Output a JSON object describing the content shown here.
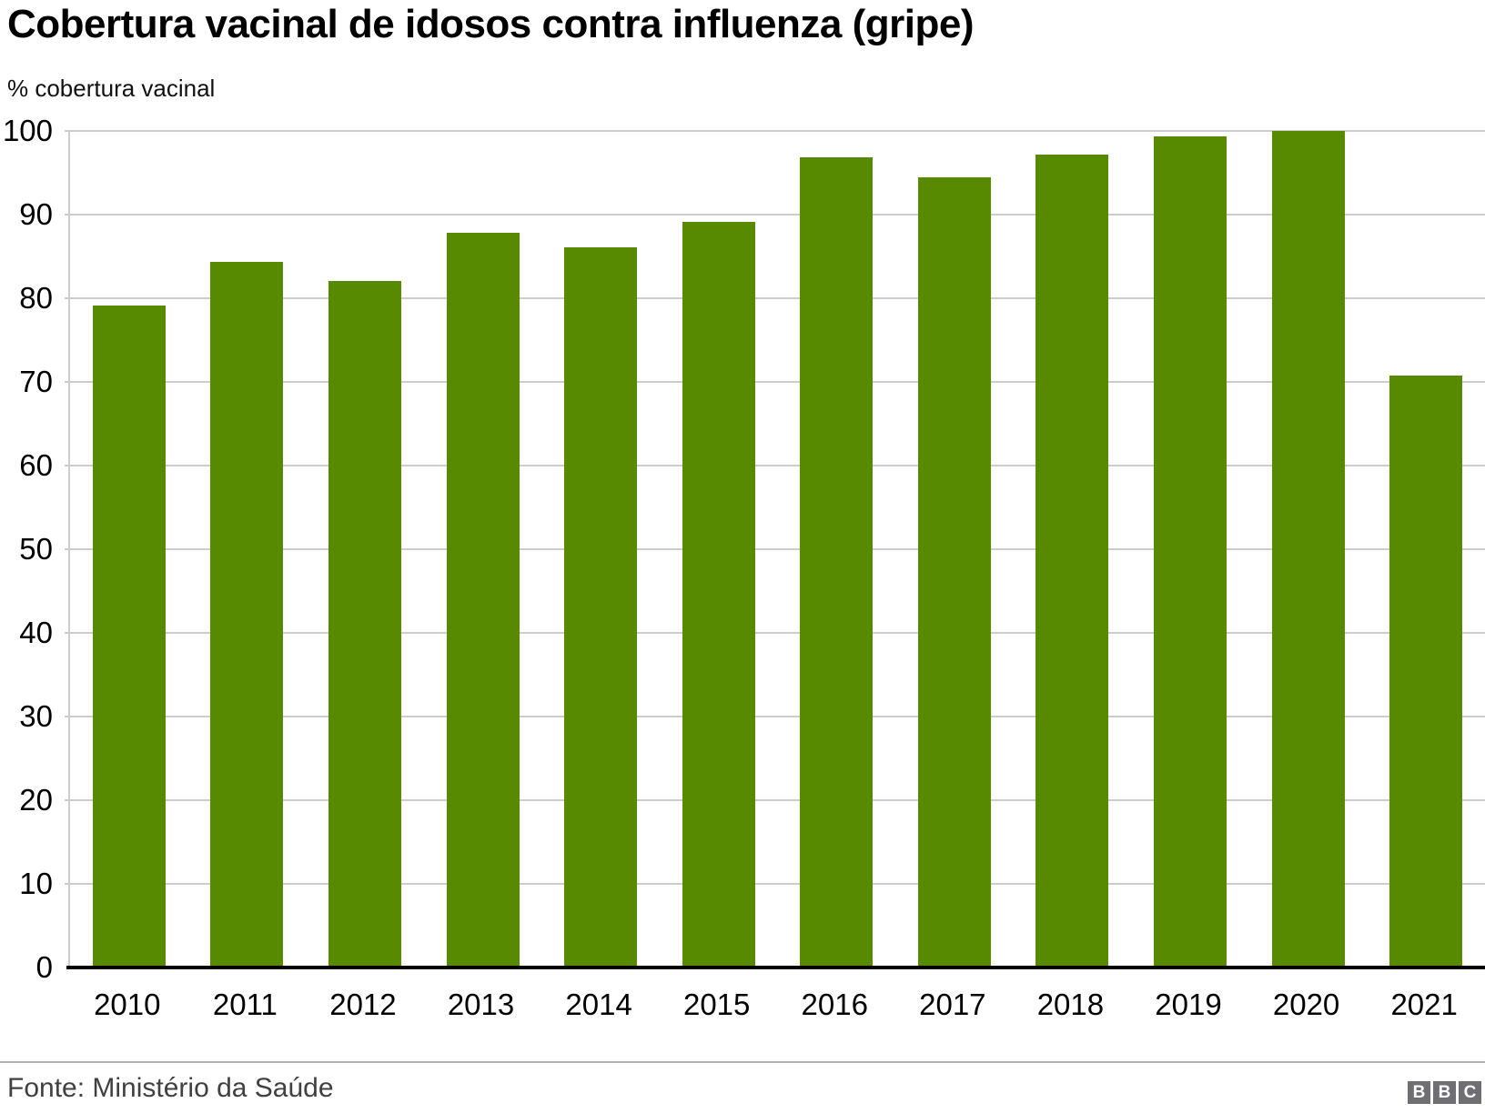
{
  "title": "Cobertura vacinal de idosos contra influenza (gripe)",
  "subtitle": "% cobertura vacinal",
  "footer": {
    "source": "Fonte: Ministério da Saúde",
    "logo_letters": [
      "B",
      "B",
      "C"
    ]
  },
  "colors": {
    "bar": "#588a00",
    "grid": "#cccccc",
    "axis": "#000000",
    "divider": "#b1b1b1",
    "source_text": "#404040",
    "logo_bg": "#6e6e73"
  },
  "chart_data": {
    "type": "bar",
    "categories": [
      "2010",
      "2011",
      "2012",
      "2013",
      "2014",
      "2015",
      "2016",
      "2017",
      "2018",
      "2019",
      "2020",
      "2021"
    ],
    "values": [
      79.1,
      84.3,
      82.1,
      87.8,
      86.1,
      89.1,
      96.9,
      94.5,
      97.2,
      99.4,
      100,
      70.8
    ],
    "title": "Cobertura vacinal de idosos contra influenza (gripe)",
    "xlabel": "",
    "ylabel": "% cobertura vacinal",
    "ylim": [
      0,
      100
    ],
    "yticks": [
      0,
      10,
      20,
      30,
      40,
      50,
      60,
      70,
      80,
      90,
      100
    ],
    "grid": true,
    "legend": false,
    "bar_color": "#588a00"
  }
}
